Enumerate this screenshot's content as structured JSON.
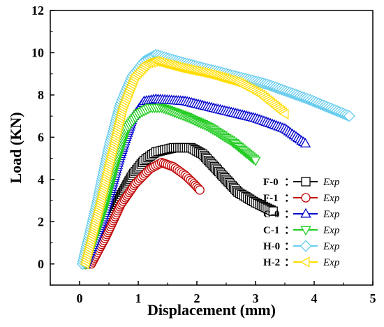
{
  "chart_data": {
    "type": "scatter",
    "xlabel": "Displacement (mm)",
    "ylabel": "Load (KN)",
    "xlim": [
      -0.5,
      5.0
    ],
    "ylim": [
      -1,
      12
    ],
    "xticks": [
      "0",
      "1",
      "2",
      "3",
      "4",
      "5"
    ],
    "yticks": [
      "0",
      "2",
      "4",
      "6",
      "8",
      "10",
      "12"
    ],
    "legend_position": "lower-right",
    "series": [
      {
        "name": "F-0",
        "label": "Exp",
        "marker": "square",
        "color": "#000000",
        "fill": "#ffffff",
        "points": [
          [
            0.1,
            0.0
          ],
          [
            0.4,
            1.5
          ],
          [
            0.7,
            3.2
          ],
          [
            0.9,
            4.2
          ],
          [
            1.1,
            4.9
          ],
          [
            1.3,
            5.3
          ],
          [
            1.6,
            5.5
          ],
          [
            1.9,
            5.5
          ],
          [
            2.1,
            5.2
          ],
          [
            2.4,
            4.3
          ],
          [
            2.7,
            3.4
          ],
          [
            3.0,
            2.9
          ],
          [
            3.3,
            2.5
          ]
        ]
      },
      {
        "name": "F-1",
        "label": "Exp",
        "marker": "circle",
        "color": "#c00000",
        "fill": "#ffffff",
        "points": [
          [
            0.2,
            0.0
          ],
          [
            0.45,
            1.3
          ],
          [
            0.7,
            2.8
          ],
          [
            0.95,
            3.8
          ],
          [
            1.2,
            4.5
          ],
          [
            1.4,
            4.8
          ],
          [
            1.6,
            4.6
          ],
          [
            1.8,
            4.2
          ],
          [
            1.95,
            3.8
          ],
          [
            2.05,
            3.5
          ]
        ]
      },
      {
        "name": "C-0",
        "label": "Exp",
        "marker": "triangle-up",
        "color": "#0000cc",
        "fill": "#ffffff",
        "points": [
          [
            0.1,
            0.0
          ],
          [
            0.4,
            2.2
          ],
          [
            0.7,
            5.2
          ],
          [
            0.9,
            6.9
          ],
          [
            1.1,
            7.7
          ],
          [
            1.3,
            7.8
          ],
          [
            1.8,
            7.7
          ],
          [
            2.4,
            7.3
          ],
          [
            3.0,
            6.9
          ],
          [
            3.5,
            6.4
          ],
          [
            3.85,
            5.7
          ]
        ]
      },
      {
        "name": "C-1",
        "label": "Exp",
        "marker": "triangle-down",
        "color": "#22cc22",
        "fill": "#ffffff",
        "points": [
          [
            0.1,
            0.0
          ],
          [
            0.4,
            2.5
          ],
          [
            0.6,
            4.6
          ],
          [
            0.8,
            6.4
          ],
          [
            1.0,
            7.1
          ],
          [
            1.2,
            7.4
          ],
          [
            1.4,
            7.4
          ],
          [
            1.8,
            7.0
          ],
          [
            2.2,
            6.5
          ],
          [
            2.6,
            5.8
          ],
          [
            3.0,
            4.9
          ]
        ]
      },
      {
        "name": "H-0",
        "label": "Exp",
        "marker": "diamond",
        "color": "#66ccee",
        "fill": "#ffffff",
        "points": [
          [
            0.05,
            0.0
          ],
          [
            0.3,
            2.9
          ],
          [
            0.5,
            5.5
          ],
          [
            0.7,
            7.6
          ],
          [
            0.9,
            8.9
          ],
          [
            1.1,
            9.6
          ],
          [
            1.3,
            9.9
          ],
          [
            1.8,
            9.5
          ],
          [
            2.5,
            9.0
          ],
          [
            3.2,
            8.5
          ],
          [
            3.9,
            7.8
          ],
          [
            4.6,
            7.0
          ]
        ]
      },
      {
        "name": "H-2",
        "label": "Exp",
        "marker": "triangle-left",
        "color": "#ffdd00",
        "fill": "#ffffff",
        "points": [
          [
            0.1,
            0.0
          ],
          [
            0.35,
            2.8
          ],
          [
            0.55,
            5.2
          ],
          [
            0.75,
            7.5
          ],
          [
            0.95,
            8.9
          ],
          [
            1.15,
            9.5
          ],
          [
            1.3,
            9.6
          ],
          [
            1.7,
            9.3
          ],
          [
            2.2,
            9.0
          ],
          [
            2.7,
            8.6
          ],
          [
            3.1,
            8.0
          ],
          [
            3.5,
            7.1
          ]
        ]
      }
    ]
  }
}
